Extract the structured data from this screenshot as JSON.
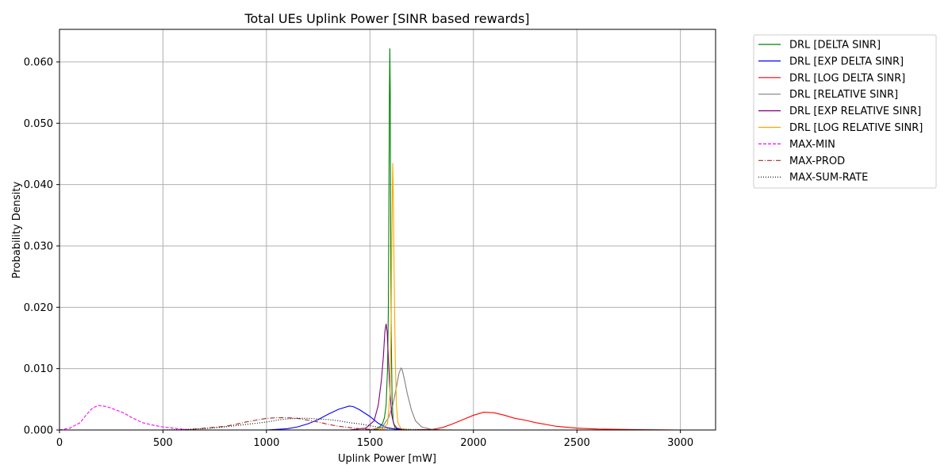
{
  "chart_data": {
    "type": "line",
    "title": "Total UEs Uplink Power [SINR based rewards]",
    "xlabel": "Uplink Power [mW]",
    "ylabel": "Probability Density",
    "xlim": [
      0,
      3170
    ],
    "ylim": [
      0,
      0.0653
    ],
    "xticks": [
      0,
      500,
      1000,
      1500,
      2000,
      2500,
      3000
    ],
    "yticks": [
      0.0,
      0.01,
      0.02,
      0.03,
      0.04,
      0.05,
      0.06
    ],
    "xtick_labels": [
      "0",
      "500",
      "1000",
      "1500",
      "2000",
      "2500",
      "3000"
    ],
    "ytick_labels": [
      "0.000",
      "0.010",
      "0.020",
      "0.030",
      "0.040",
      "0.050",
      "0.060"
    ],
    "grid": true,
    "legend_position": "outside-right-top",
    "series": [
      {
        "name": "DRL [DELTA SINR]",
        "color": "#008000",
        "dash": "solid",
        "x": [
          1500,
          1540,
          1560,
          1570,
          1578,
          1585,
          1589,
          1592,
          1594,
          1596,
          1598,
          1600,
          1603,
          1607,
          1612,
          1620,
          1640,
          1680
        ],
        "y": [
          0.0,
          0.0003,
          0.001,
          0.002,
          0.004,
          0.01,
          0.02,
          0.04,
          0.055,
          0.0622,
          0.055,
          0.035,
          0.015,
          0.005,
          0.0015,
          0.0004,
          0.0001,
          0.0
        ]
      },
      {
        "name": "DRL [EXP DELTA SINR]",
        "color": "#0000ff",
        "dash": "solid",
        "x": [
          1000,
          1100,
          1150,
          1200,
          1250,
          1300,
          1350,
          1400,
          1420,
          1450,
          1500,
          1540,
          1580,
          1620,
          1660,
          1700,
          1800,
          2000
        ],
        "y": [
          0.0,
          0.0002,
          0.0005,
          0.001,
          0.0017,
          0.0026,
          0.0034,
          0.0039,
          0.0038,
          0.0033,
          0.0022,
          0.0011,
          0.0004,
          0.00015,
          5e-05,
          0.0,
          0.0,
          0.0
        ]
      },
      {
        "name": "DRL [LOG DELTA SINR]",
        "color": "#ff0000",
        "dash": "solid",
        "x": [
          1700,
          1800,
          1850,
          1900,
          1950,
          2000,
          2050,
          2100,
          2150,
          2200,
          2250,
          2300,
          2400,
          2500,
          2600,
          2700,
          2800,
          3000
        ],
        "y": [
          0.0,
          0.0001,
          0.0004,
          0.001,
          0.0017,
          0.0024,
          0.0029,
          0.0028,
          0.0024,
          0.0019,
          0.0016,
          0.0012,
          0.0006,
          0.0003,
          0.00015,
          0.0001,
          5e-05,
          0.0
        ]
      },
      {
        "name": "DRL [RELATIVE SINR]",
        "color": "#808080",
        "dash": "solid",
        "x": [
          1500,
          1560,
          1590,
          1610,
          1625,
          1640,
          1650,
          1655,
          1665,
          1680,
          1700,
          1720,
          1750,
          1800,
          1850
        ],
        "y": [
          0.0,
          0.0005,
          0.002,
          0.004,
          0.0065,
          0.0092,
          0.0101,
          0.0099,
          0.0085,
          0.006,
          0.0033,
          0.0015,
          0.0005,
          0.0001,
          0.0
        ]
      },
      {
        "name": "DRL [EXP RELATIVE SINR]",
        "color": "#800080",
        "dash": "solid",
        "x": [
          1400,
          1480,
          1520,
          1540,
          1555,
          1565,
          1572,
          1578,
          1583,
          1590,
          1597,
          1605,
          1615,
          1630,
          1660,
          1700
        ],
        "y": [
          0.0,
          0.0003,
          0.0015,
          0.004,
          0.008,
          0.012,
          0.016,
          0.0173,
          0.016,
          0.011,
          0.006,
          0.0025,
          0.001,
          0.0003,
          0.0001,
          0.0
        ]
      },
      {
        "name": "DRL [LOG RELATIVE SINR]",
        "color": "#ffa500",
        "dash": "solid",
        "x": [
          1500,
          1560,
          1585,
          1597,
          1603,
          1607,
          1610,
          1613,
          1617,
          1622,
          1628,
          1635,
          1650,
          1700
        ],
        "y": [
          0.0,
          0.0002,
          0.001,
          0.006,
          0.02,
          0.035,
          0.0435,
          0.038,
          0.025,
          0.012,
          0.004,
          0.0012,
          0.0002,
          0.0
        ]
      },
      {
        "name": "MAX-MIN",
        "color": "#ff00ff",
        "dash": "dashed",
        "x": [
          0,
          50,
          100,
          130,
          160,
          190,
          230,
          270,
          310,
          350,
          400,
          450,
          500,
          550,
          600,
          650
        ],
        "y": [
          0.0,
          0.0003,
          0.0012,
          0.0025,
          0.0036,
          0.004,
          0.0038,
          0.0033,
          0.0028,
          0.002,
          0.0012,
          0.0008,
          0.0005,
          0.0003,
          0.0001,
          0.0
        ]
      },
      {
        "name": "MAX-PROD",
        "color": "#a52a2a",
        "dash": "dashdot",
        "x": [
          600,
          700,
          800,
          850,
          900,
          950,
          1000,
          1050,
          1100,
          1150,
          1200,
          1250,
          1300,
          1350,
          1400,
          1450,
          1500,
          1600,
          1700
        ],
        "y": [
          0.0,
          0.0003,
          0.0006,
          0.0009,
          0.0013,
          0.0016,
          0.0019,
          0.002,
          0.002,
          0.0019,
          0.0016,
          0.0013,
          0.0009,
          0.0006,
          0.0004,
          0.0002,
          0.0001,
          0.0,
          0.0
        ]
      },
      {
        "name": "MAX-SUM-RATE",
        "color": "#000000",
        "dash": "dotted",
        "x": [
          300,
          500,
          700,
          800,
          900,
          1000,
          1050,
          1100,
          1150,
          1200,
          1250,
          1300,
          1350,
          1400,
          1450,
          1500,
          1550,
          1600,
          1700,
          1900,
          2230
        ],
        "y": [
          0.0,
          0.0,
          0.0002,
          0.0005,
          0.0009,
          0.0013,
          0.0016,
          0.0018,
          0.0019,
          0.0019,
          0.0018,
          0.0017,
          0.0015,
          0.0012,
          0.001,
          0.0007,
          0.0004,
          0.0002,
          0.0001,
          0.0,
          0.0
        ]
      }
    ]
  }
}
